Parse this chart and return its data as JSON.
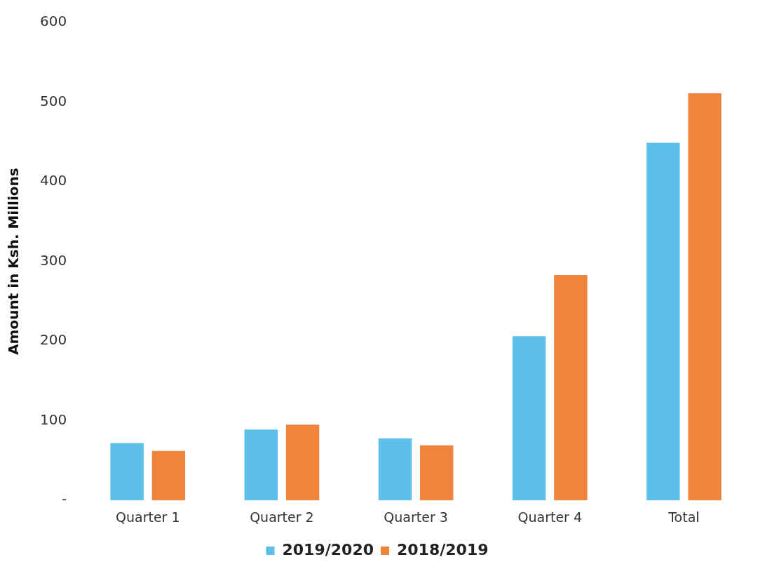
{
  "chart_data": {
    "type": "bar",
    "ylabel": "Amount in Ksh. Millions",
    "categories": [
      "Quarter 1",
      "Quarter 2",
      "Quarter 3",
      "Quarter 4",
      "Total"
    ],
    "series": [
      {
        "name": "2019/2020",
        "color": "#5bbfea",
        "values": [
          72,
          89,
          78,
          206,
          449
        ]
      },
      {
        "name": "2018/2019",
        "color": "#f0843c",
        "values": [
          62,
          95,
          69,
          283,
          511
        ]
      }
    ],
    "ylim": [
      0,
      600
    ],
    "yticks": [
      {
        "value": 0,
        "label": "-"
      },
      100,
      200,
      300,
      400,
      500,
      600
    ],
    "grid": false,
    "legend": "bottom"
  }
}
